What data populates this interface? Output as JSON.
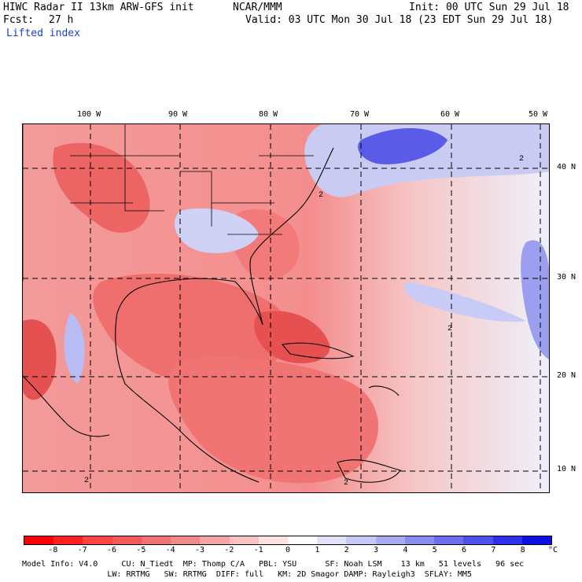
{
  "header": {
    "title_left": "HIWC Radar II 13km ARW-GFS init",
    "org": "NCAR/MMM",
    "init": "Init: 00 UTC Sun 29 Jul 18",
    "fcst_label": "Fcst:",
    "fcst_value": "27 h",
    "valid": "Valid: 03 UTC Mon 30 Jul 18 (23 EDT Sun 29 Jul 18)",
    "field": "Lifted index"
  },
  "map": {
    "longitude_labels": [
      "100 W",
      "90 W",
      "80 W",
      "70 W",
      "60 W",
      "50 W"
    ],
    "latitude_labels": [
      "40 N",
      "30 N",
      "20 N",
      "10 N"
    ],
    "contour_labels": [
      "2",
      "2",
      "2",
      "2",
      "2"
    ],
    "colors": {
      "unstable": "#f04a4a",
      "neutral": "#ffffff",
      "stable": "#2a3ee8"
    }
  },
  "colorbar": {
    "unit": "°C",
    "tick_labels": [
      "-8",
      "-7",
      "-6",
      "-5",
      "-4",
      "-3",
      "-2",
      "-1",
      "0",
      "1",
      "2",
      "3",
      "4",
      "5",
      "6",
      "7",
      "8"
    ],
    "colors": [
      "#ff0000",
      "#ff2020",
      "#ff4444",
      "#f25a5a",
      "#f07272",
      "#f28a8a",
      "#f4a4a4",
      "#f8c2c2",
      "#fde2e2",
      "#ffffff",
      "#e2e2fa",
      "#c6c8f6",
      "#a8aaf2",
      "#8a8cf0",
      "#6c6eee",
      "#4e50ea",
      "#2c30e8",
      "#0a10e0"
    ]
  },
  "footer": {
    "line1": "Model Info: V4.0     CU: N_Tiedt  MP: Thomp C/A   PBL: YSU      SF: Noah LSM    13 km   51 levels   96 sec",
    "line2": "                  LW: RRTMG   SW: RRTMG  DIFF: full   KM: 2D Smagor DAMP: Rayleigh3  SFLAY: MM5"
  }
}
